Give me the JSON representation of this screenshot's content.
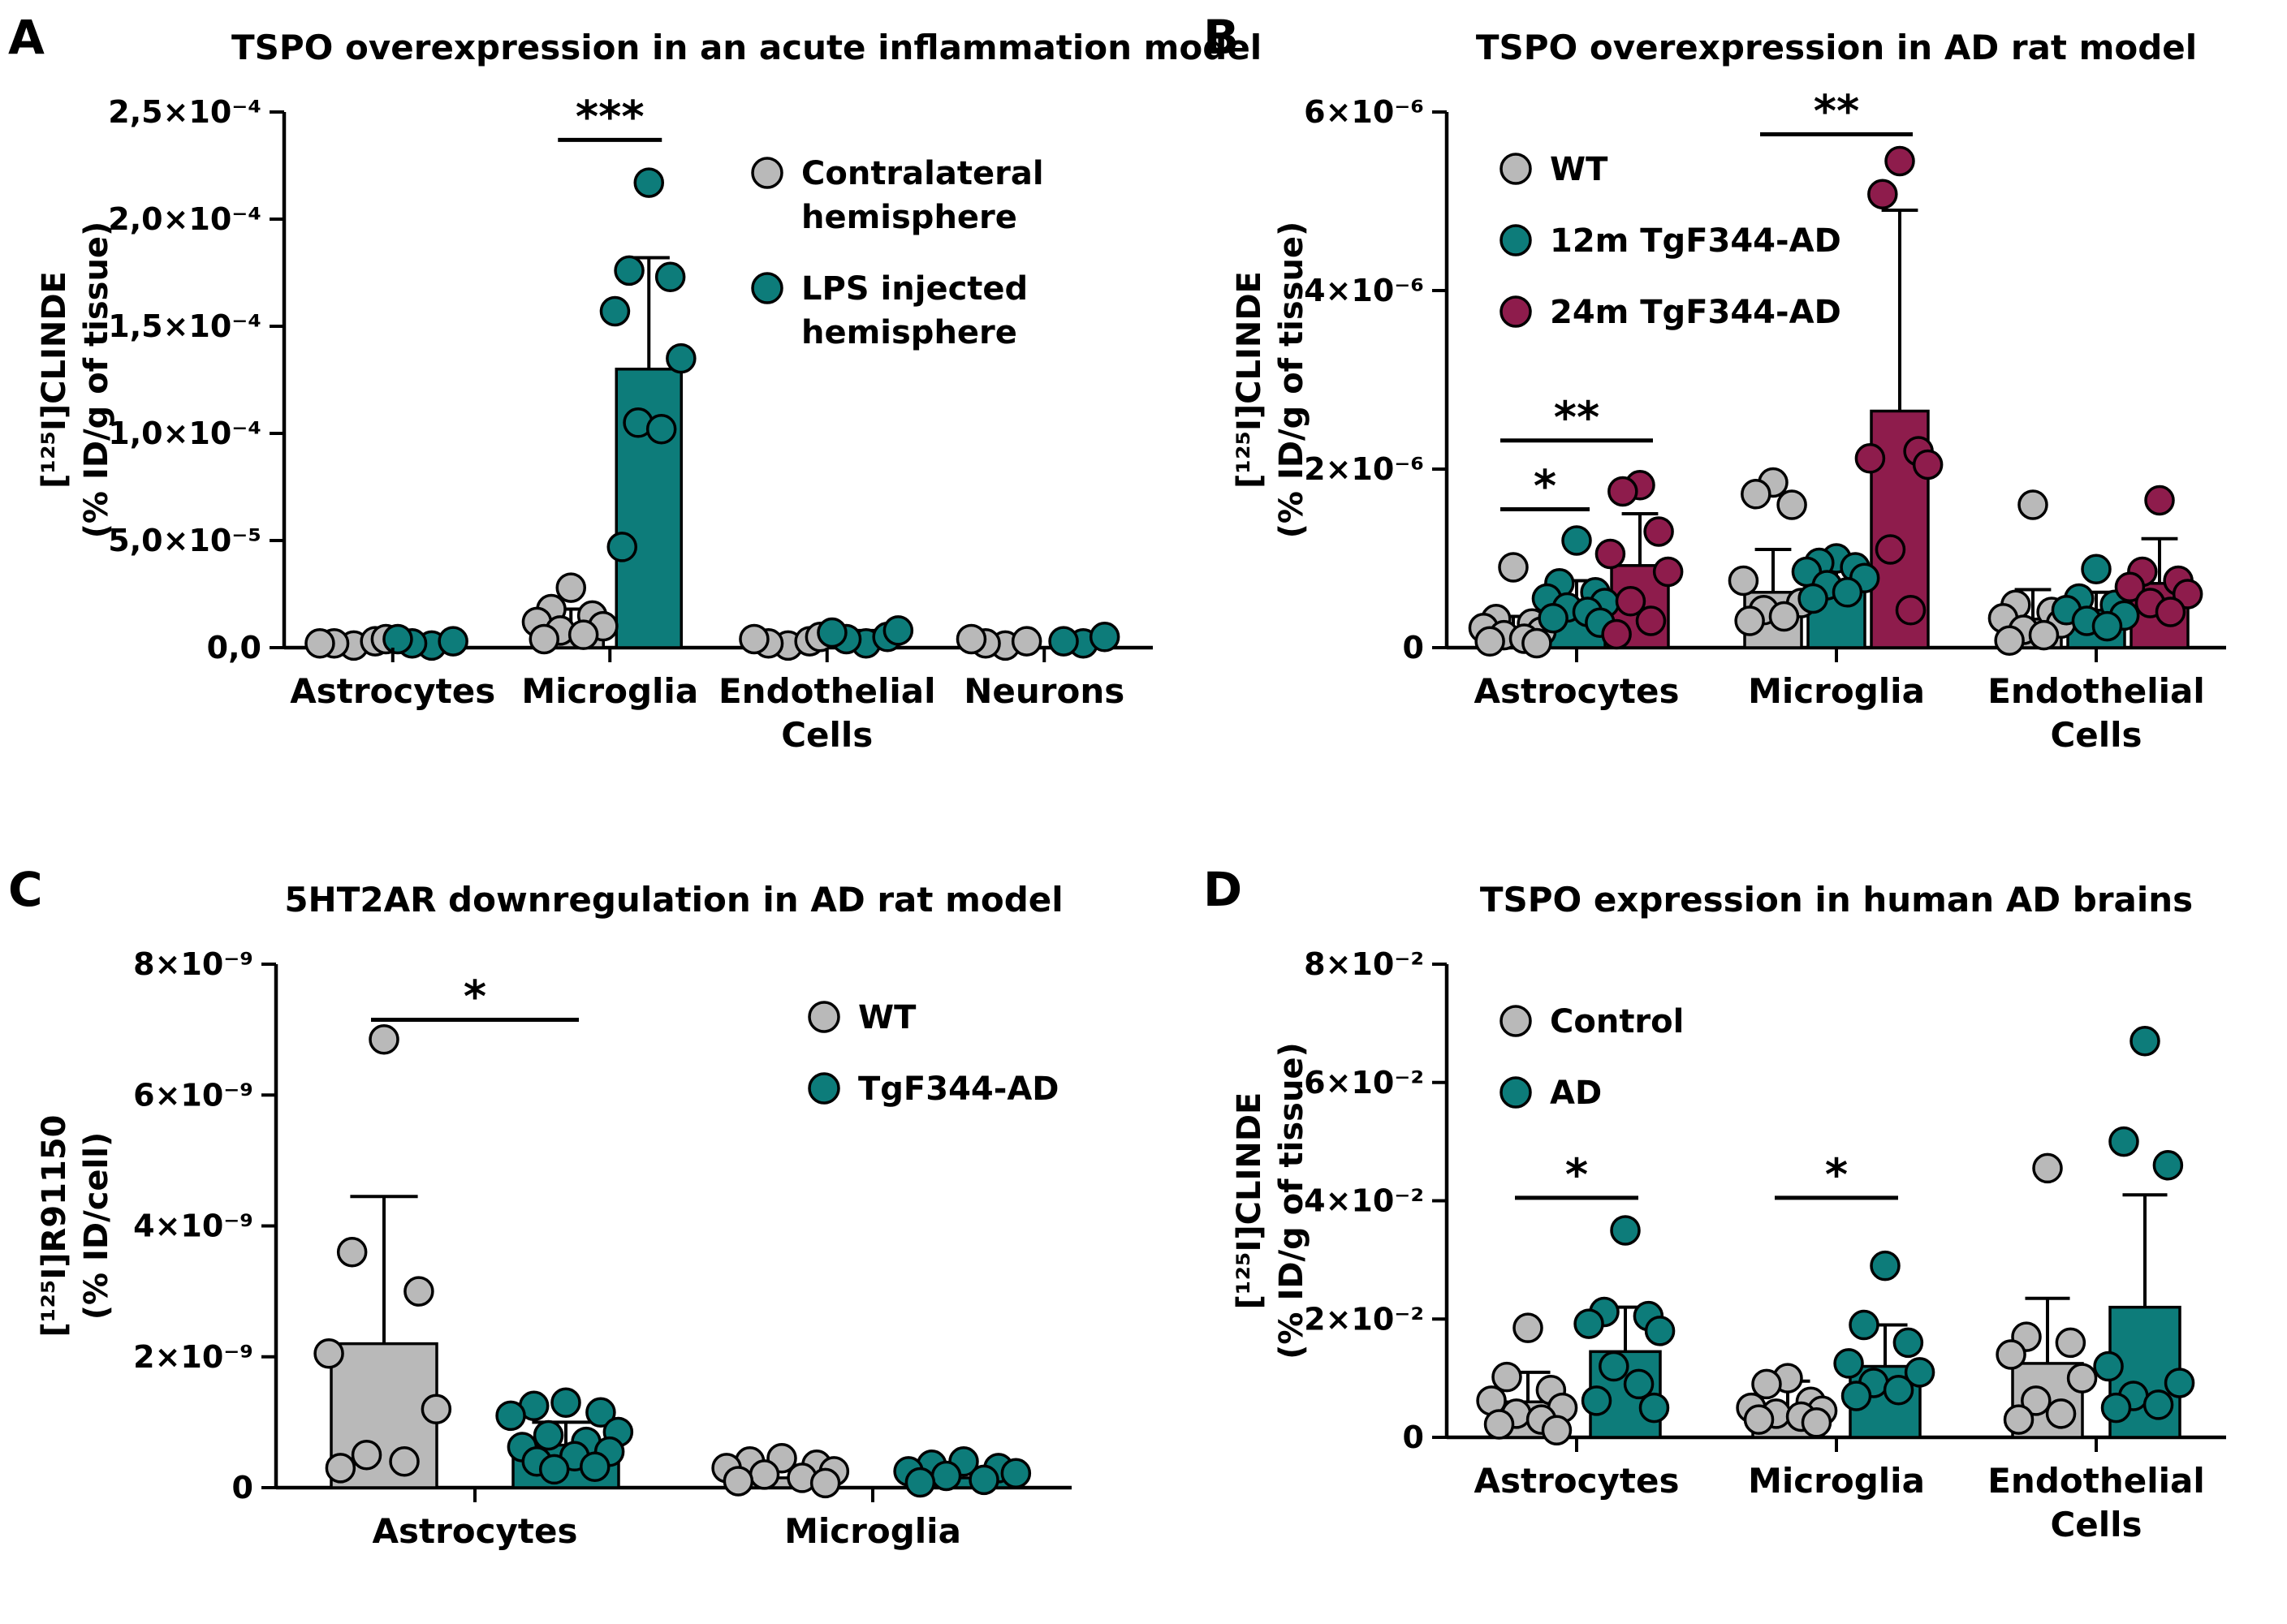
{
  "figure": {
    "background": "#ffffff"
  },
  "colors": {
    "gray": "#b9b9b9",
    "teal": "#0d7c7a",
    "maroon": "#8e1c4c",
    "axis": "#000000"
  },
  "chart_data": [
    {
      "panel": "A",
      "type": "bar",
      "overlay": "scatter",
      "title": "TSPO overexpression in an acute inflammation model",
      "ylabel_lines": [
        "[¹²⁵I]CLINDE",
        "(% ID/g of tissue)"
      ],
      "value_unit": "values are in units of 1e-4 % ID/g of tissue",
      "ymax": 2.5,
      "yticks": [
        {
          "v": 0.0,
          "label": "0,0"
        },
        {
          "v": 0.5,
          "label": "5,0×10⁻⁵"
        },
        {
          "v": 1.0,
          "label": "1,0×10⁻⁴"
        },
        {
          "v": 1.5,
          "label": "1,5×10⁻⁴"
        },
        {
          "v": 2.0,
          "label": "2,0×10⁻⁴"
        },
        {
          "v": 2.5,
          "label": "2,5×10⁻⁴"
        }
      ],
      "categories": [
        [
          "Astrocytes"
        ],
        [
          "Microglia"
        ],
        [
          "Endothelial",
          "Cells"
        ],
        [
          "Neurons"
        ]
      ],
      "series": [
        {
          "name": "Contralateral hemisphere",
          "color": "gray",
          "legend_lines": [
            "Contralateral",
            "hemisphere"
          ],
          "bars": [
            {
              "mean": 0.03,
              "sd": 0.02,
              "points": [
                0.01,
                0.02,
                0.03,
                0.02,
                0.04
              ]
            },
            {
              "mean": 0.1,
              "sd": 0.08,
              "points": [
                0.28,
                0.18,
                0.15,
                0.12,
                0.1,
                0.08,
                0.06,
                0.04
              ]
            },
            {
              "mean": 0.03,
              "sd": 0.02,
              "points": [
                0.01,
                0.02,
                0.03,
                0.04,
                0.05
              ]
            },
            {
              "mean": 0.02,
              "sd": 0.01,
              "points": [
                0.01,
                0.02,
                0.03,
                0.04
              ]
            }
          ]
        },
        {
          "name": "LPS injected hemisphere",
          "color": "teal",
          "legend_lines": [
            "LPS injected",
            "hemisphere"
          ],
          "bars": [
            {
              "mean": 0.03,
              "sd": 0.02,
              "points": [
                0.01,
                0.02,
                0.03,
                0.04
              ]
            },
            {
              "mean": 1.3,
              "sd": 0.52,
              "points": [
                2.17,
                1.76,
                1.73,
                1.57,
                1.35,
                1.05,
                1.02,
                0.47
              ]
            },
            {
              "mean": 0.05,
              "sd": 0.03,
              "points": [
                0.02,
                0.04,
                0.05,
                0.07,
                0.08
              ]
            },
            {
              "mean": 0.03,
              "sd": 0.02,
              "points": [
                0.02,
                0.03,
                0.05
              ]
            }
          ]
        }
      ],
      "significance": [
        {
          "cat": 1,
          "g1": 0,
          "g2": 1,
          "y": 2.37,
          "label": "***"
        }
      ]
    },
    {
      "panel": "B",
      "type": "bar",
      "overlay": "scatter",
      "title": "TSPO overexpression in AD rat model",
      "ylabel_lines": [
        "[¹²⁵I]CLINDE",
        "(% ID/g of tissue)"
      ],
      "value_unit": "values are in units of 1e-6 % ID/g of tissue",
      "ymax": 6,
      "yticks": [
        {
          "v": 0,
          "label": "0"
        },
        {
          "v": 2,
          "label": "2×10⁻⁶"
        },
        {
          "v": 4,
          "label": "4×10⁻⁶"
        },
        {
          "v": 6,
          "label": "6×10⁻⁶"
        }
      ],
      "categories": [
        [
          "Astrocytes"
        ],
        [
          "Microglia"
        ],
        [
          "Endothelial",
          "Cells"
        ]
      ],
      "series": [
        {
          "name": "WT",
          "color": "gray",
          "legend_lines": [
            "WT"
          ],
          "bars": [
            {
              "mean": 0.2,
              "sd": 0.15,
              "points": [
                0.9,
                0.32,
                0.27,
                0.22,
                0.18,
                0.14,
                0.1,
                0.07,
                0.05
              ]
            },
            {
              "mean": 0.62,
              "sd": 0.48,
              "points": [
                1.85,
                1.72,
                1.6,
                0.75,
                0.5,
                0.42,
                0.35,
                0.3
              ]
            },
            {
              "mean": 0.32,
              "sd": 0.33,
              "points": [
                1.6,
                0.48,
                0.4,
                0.33,
                0.27,
                0.2,
                0.14,
                0.08
              ]
            }
          ]
        },
        {
          "name": "12m TgF344-AD",
          "color": "teal",
          "legend_lines": [
            "12m TgF344-AD"
          ],
          "bars": [
            {
              "mean": 0.5,
              "sd": 0.25,
              "points": [
                1.2,
                0.72,
                0.62,
                0.55,
                0.5,
                0.45,
                0.4,
                0.33,
                0.28
              ]
            },
            {
              "mean": 0.76,
              "sd": 0.24,
              "points": [
                1.0,
                0.95,
                0.9,
                0.85,
                0.78,
                0.7,
                0.62,
                0.55
              ]
            },
            {
              "mean": 0.42,
              "sd": 0.2,
              "points": [
                0.88,
                0.55,
                0.48,
                0.42,
                0.36,
                0.3,
                0.24
              ]
            }
          ]
        },
        {
          "name": "24m TgF344-AD",
          "color": "maroon",
          "legend_lines": [
            "24m TgF344-AD"
          ],
          "bars": [
            {
              "mean": 0.92,
              "sd": 0.58,
              "points": [
                1.82,
                1.75,
                1.3,
                1.05,
                0.85,
                0.52,
                0.3,
                0.15
              ]
            },
            {
              "mean": 2.65,
              "sd": 2.25,
              "points": [
                5.45,
                5.08,
                2.2,
                2.12,
                2.05,
                1.1,
                0.42
              ]
            },
            {
              "mean": 0.72,
              "sd": 0.5,
              "points": [
                1.65,
                0.85,
                0.75,
                0.68,
                0.6,
                0.5,
                0.4
              ]
            }
          ]
        }
      ],
      "significance": [
        {
          "cat": 0,
          "g1": 0,
          "g2": 1,
          "y": 1.55,
          "label": "*"
        },
        {
          "cat": 0,
          "g1": 0,
          "g2": 2,
          "y": 2.32,
          "label": "**"
        },
        {
          "cat": 1,
          "g1": 0,
          "g2": 2,
          "y": 5.75,
          "label": "**"
        }
      ]
    },
    {
      "panel": "C",
      "type": "bar",
      "overlay": "scatter",
      "title": "5HT2AR downregulation in AD rat model",
      "ylabel_lines": [
        "[¹²⁵I]R91150",
        "(% ID/cell)"
      ],
      "value_unit": "values are in units of 1e-9 % ID/cell",
      "ymax": 8,
      "yticks": [
        {
          "v": 0,
          "label": "0"
        },
        {
          "v": 2,
          "label": "2×10⁻⁹"
        },
        {
          "v": 4,
          "label": "4×10⁻⁹"
        },
        {
          "v": 6,
          "label": "6×10⁻⁹"
        },
        {
          "v": 8,
          "label": "8×10⁻⁹"
        }
      ],
      "categories": [
        [
          "Astrocytes"
        ],
        [
          "Microglia"
        ]
      ],
      "series": [
        {
          "name": "WT",
          "color": "gray",
          "legend_lines": [
            "WT"
          ],
          "bars": [
            {
              "mean": 2.2,
              "sd": 2.25,
              "points": [
                6.85,
                3.6,
                3.0,
                2.05,
                1.2,
                0.5,
                0.4,
                0.3
              ]
            },
            {
              "mean": 0.15,
              "sd": 0,
              "points": [
                0.45,
                0.4,
                0.35,
                0.3,
                0.25,
                0.2,
                0.15,
                0.1,
                0.07
              ]
            }
          ]
        },
        {
          "name": "TgF344-AD",
          "color": "teal",
          "legend_lines": [
            "TgF344-AD"
          ],
          "bars": [
            {
              "mean": 0.65,
              "sd": 0.35,
              "points": [
                1.3,
                1.25,
                1.15,
                1.1,
                0.85,
                0.8,
                0.7,
                0.62,
                0.55,
                0.48,
                0.4,
                0.32,
                0.28
              ]
            },
            {
              "mean": 0.15,
              "sd": 0,
              "points": [
                0.4,
                0.35,
                0.3,
                0.25,
                0.22,
                0.18,
                0.12,
                0.08
              ]
            }
          ]
        }
      ],
      "significance": [
        {
          "cat": 0,
          "g1": 0,
          "g2": 1,
          "y": 7.15,
          "label": "*"
        }
      ]
    },
    {
      "panel": "D",
      "type": "bar",
      "overlay": "scatter",
      "title": "TSPO expression in human AD brains",
      "ylabel_lines": [
        "[¹²⁵I]CLINDE",
        "(% ID/g of tissue)"
      ],
      "value_unit": "values are in units of 1e-2 % ID/g of tissue",
      "ymax": 8,
      "yticks": [
        {
          "v": 0,
          "label": "0"
        },
        {
          "v": 2,
          "label": "2×10⁻²"
        },
        {
          "v": 4,
          "label": "4×10⁻²"
        },
        {
          "v": 6,
          "label": "6×10⁻²"
        },
        {
          "v": 8,
          "label": "8×10⁻²"
        }
      ],
      "categories": [
        [
          "Astrocytes"
        ],
        [
          "Microglia"
        ],
        [
          "Endothelial",
          "Cells"
        ]
      ],
      "series": [
        {
          "name": "Control",
          "color": "gray",
          "legend_lines": [
            "Control"
          ],
          "bars": [
            {
              "mean": 0.6,
              "sd": 0.5,
              "points": [
                1.85,
                1.02,
                0.8,
                0.62,
                0.5,
                0.4,
                0.3,
                0.22,
                0.12
              ]
            },
            {
              "mean": 0.45,
              "sd": 0.5,
              "points": [
                1.0,
                0.9,
                0.6,
                0.5,
                0.45,
                0.4,
                0.35,
                0.3,
                0.25
              ]
            },
            {
              "mean": 1.25,
              "sd": 1.1,
              "points": [
                4.55,
                1.7,
                1.6,
                1.4,
                1.0,
                0.62,
                0.4,
                0.3
              ]
            }
          ]
        },
        {
          "name": "AD",
          "color": "teal",
          "legend_lines": [
            "AD"
          ],
          "bars": [
            {
              "mean": 1.45,
              "sd": 0.75,
              "points": [
                3.5,
                2.12,
                2.05,
                1.92,
                1.8,
                1.2,
                0.9,
                0.62,
                0.5
              ]
            },
            {
              "mean": 1.2,
              "sd": 0.7,
              "points": [
                2.9,
                1.9,
                1.6,
                1.25,
                1.1,
                0.92,
                0.8,
                0.7
              ]
            },
            {
              "mean": 2.2,
              "sd": 1.9,
              "points": [
                6.7,
                5.0,
                4.6,
                1.2,
                0.92,
                0.7,
                0.55,
                0.5
              ]
            }
          ]
        }
      ],
      "significance": [
        {
          "cat": 0,
          "g1": 0,
          "g2": 1,
          "y": 4.05,
          "label": "*"
        },
        {
          "cat": 1,
          "g1": 0,
          "g2": 1,
          "y": 4.05,
          "label": "*"
        }
      ]
    }
  ]
}
